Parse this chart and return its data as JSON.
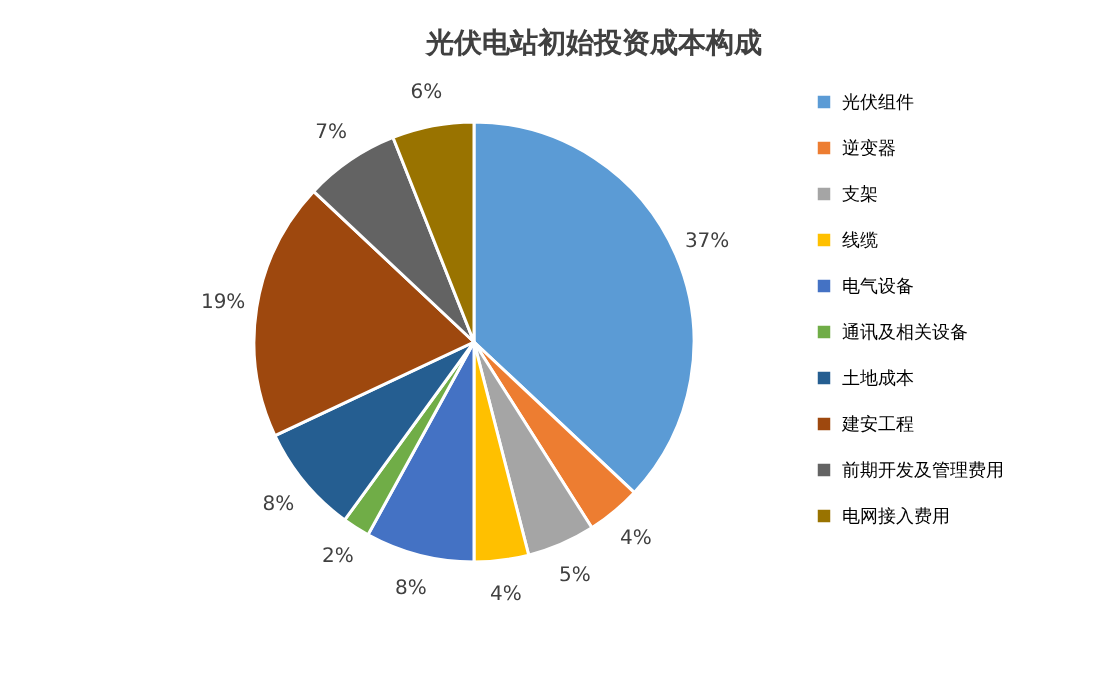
{
  "chart_data": {
    "type": "pie",
    "title": "光伏电站初始投资成本构成",
    "categories": [
      "光伏组件",
      "逆变器",
      "支架",
      "线缆",
      "电气设备",
      "通讯及相关设备",
      "土地成本",
      "建安工程",
      "前期开发及管理费用",
      "电网接入费用"
    ],
    "values": [
      37,
      4,
      5,
      4,
      8,
      2,
      8,
      19,
      7,
      6
    ],
    "value_labels": [
      "37%",
      "4%",
      "5%",
      "4%",
      "8%",
      "2%",
      "8%",
      "19%",
      "7%",
      "6%"
    ],
    "colors": [
      "#5b9bd5",
      "#ed7d31",
      "#a5a5a5",
      "#ffc000",
      "#4472c4",
      "#70ad47",
      "#255e91",
      "#9e480e",
      "#636363",
      "#997300"
    ],
    "legend": "right"
  }
}
